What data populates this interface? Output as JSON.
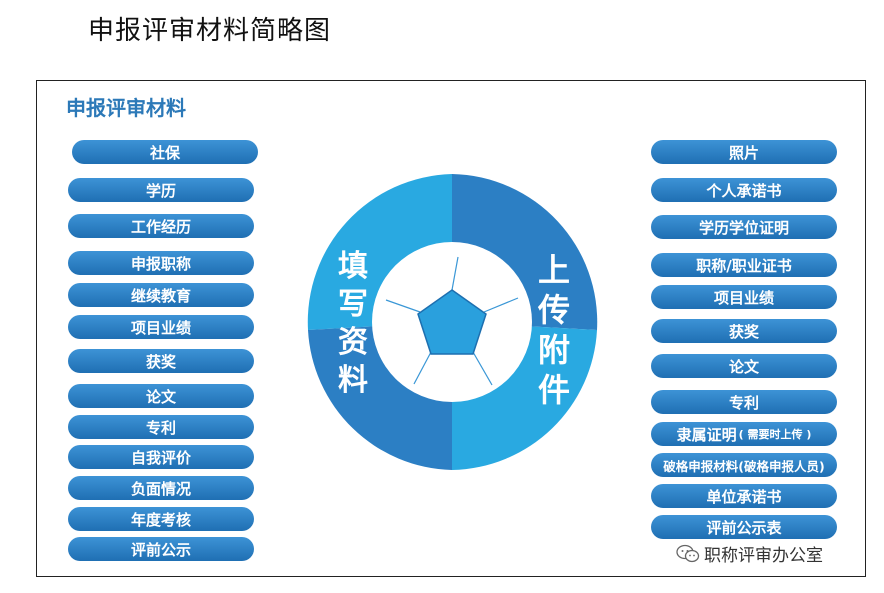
{
  "title": "申报评审材料简略图",
  "frame_title": "申报评审材料",
  "left_items": [
    "社保",
    "学历",
    "工作经历",
    "申报职称",
    "继续教育",
    "项目业绩",
    "获奖",
    "论文",
    "专利",
    "自我评价",
    "负面情况",
    "年度考核",
    "评前公示"
  ],
  "right_items": [
    "照片",
    "个人承诺书",
    "学历学位证明",
    "职称/职业证书",
    "项目业绩",
    "获奖",
    "论文",
    "专利",
    "隶属证明",
    "破格申报材料(破格申报人员)",
    "单位承诺书",
    "评前公示表"
  ],
  "right_item_note": "( 需要时上传 )",
  "center": {
    "left_label": [
      "填",
      "写",
      "资",
      "料"
    ],
    "right_label": [
      "上",
      "传",
      "附",
      "件"
    ]
  },
  "watermark": "职称评审办公室",
  "colors": {
    "light_blue": "#29a9e1",
    "dark_blue": "#2c7fc4",
    "pill_top": "#3d93d6",
    "pill_bottom": "#1f6fb3"
  }
}
